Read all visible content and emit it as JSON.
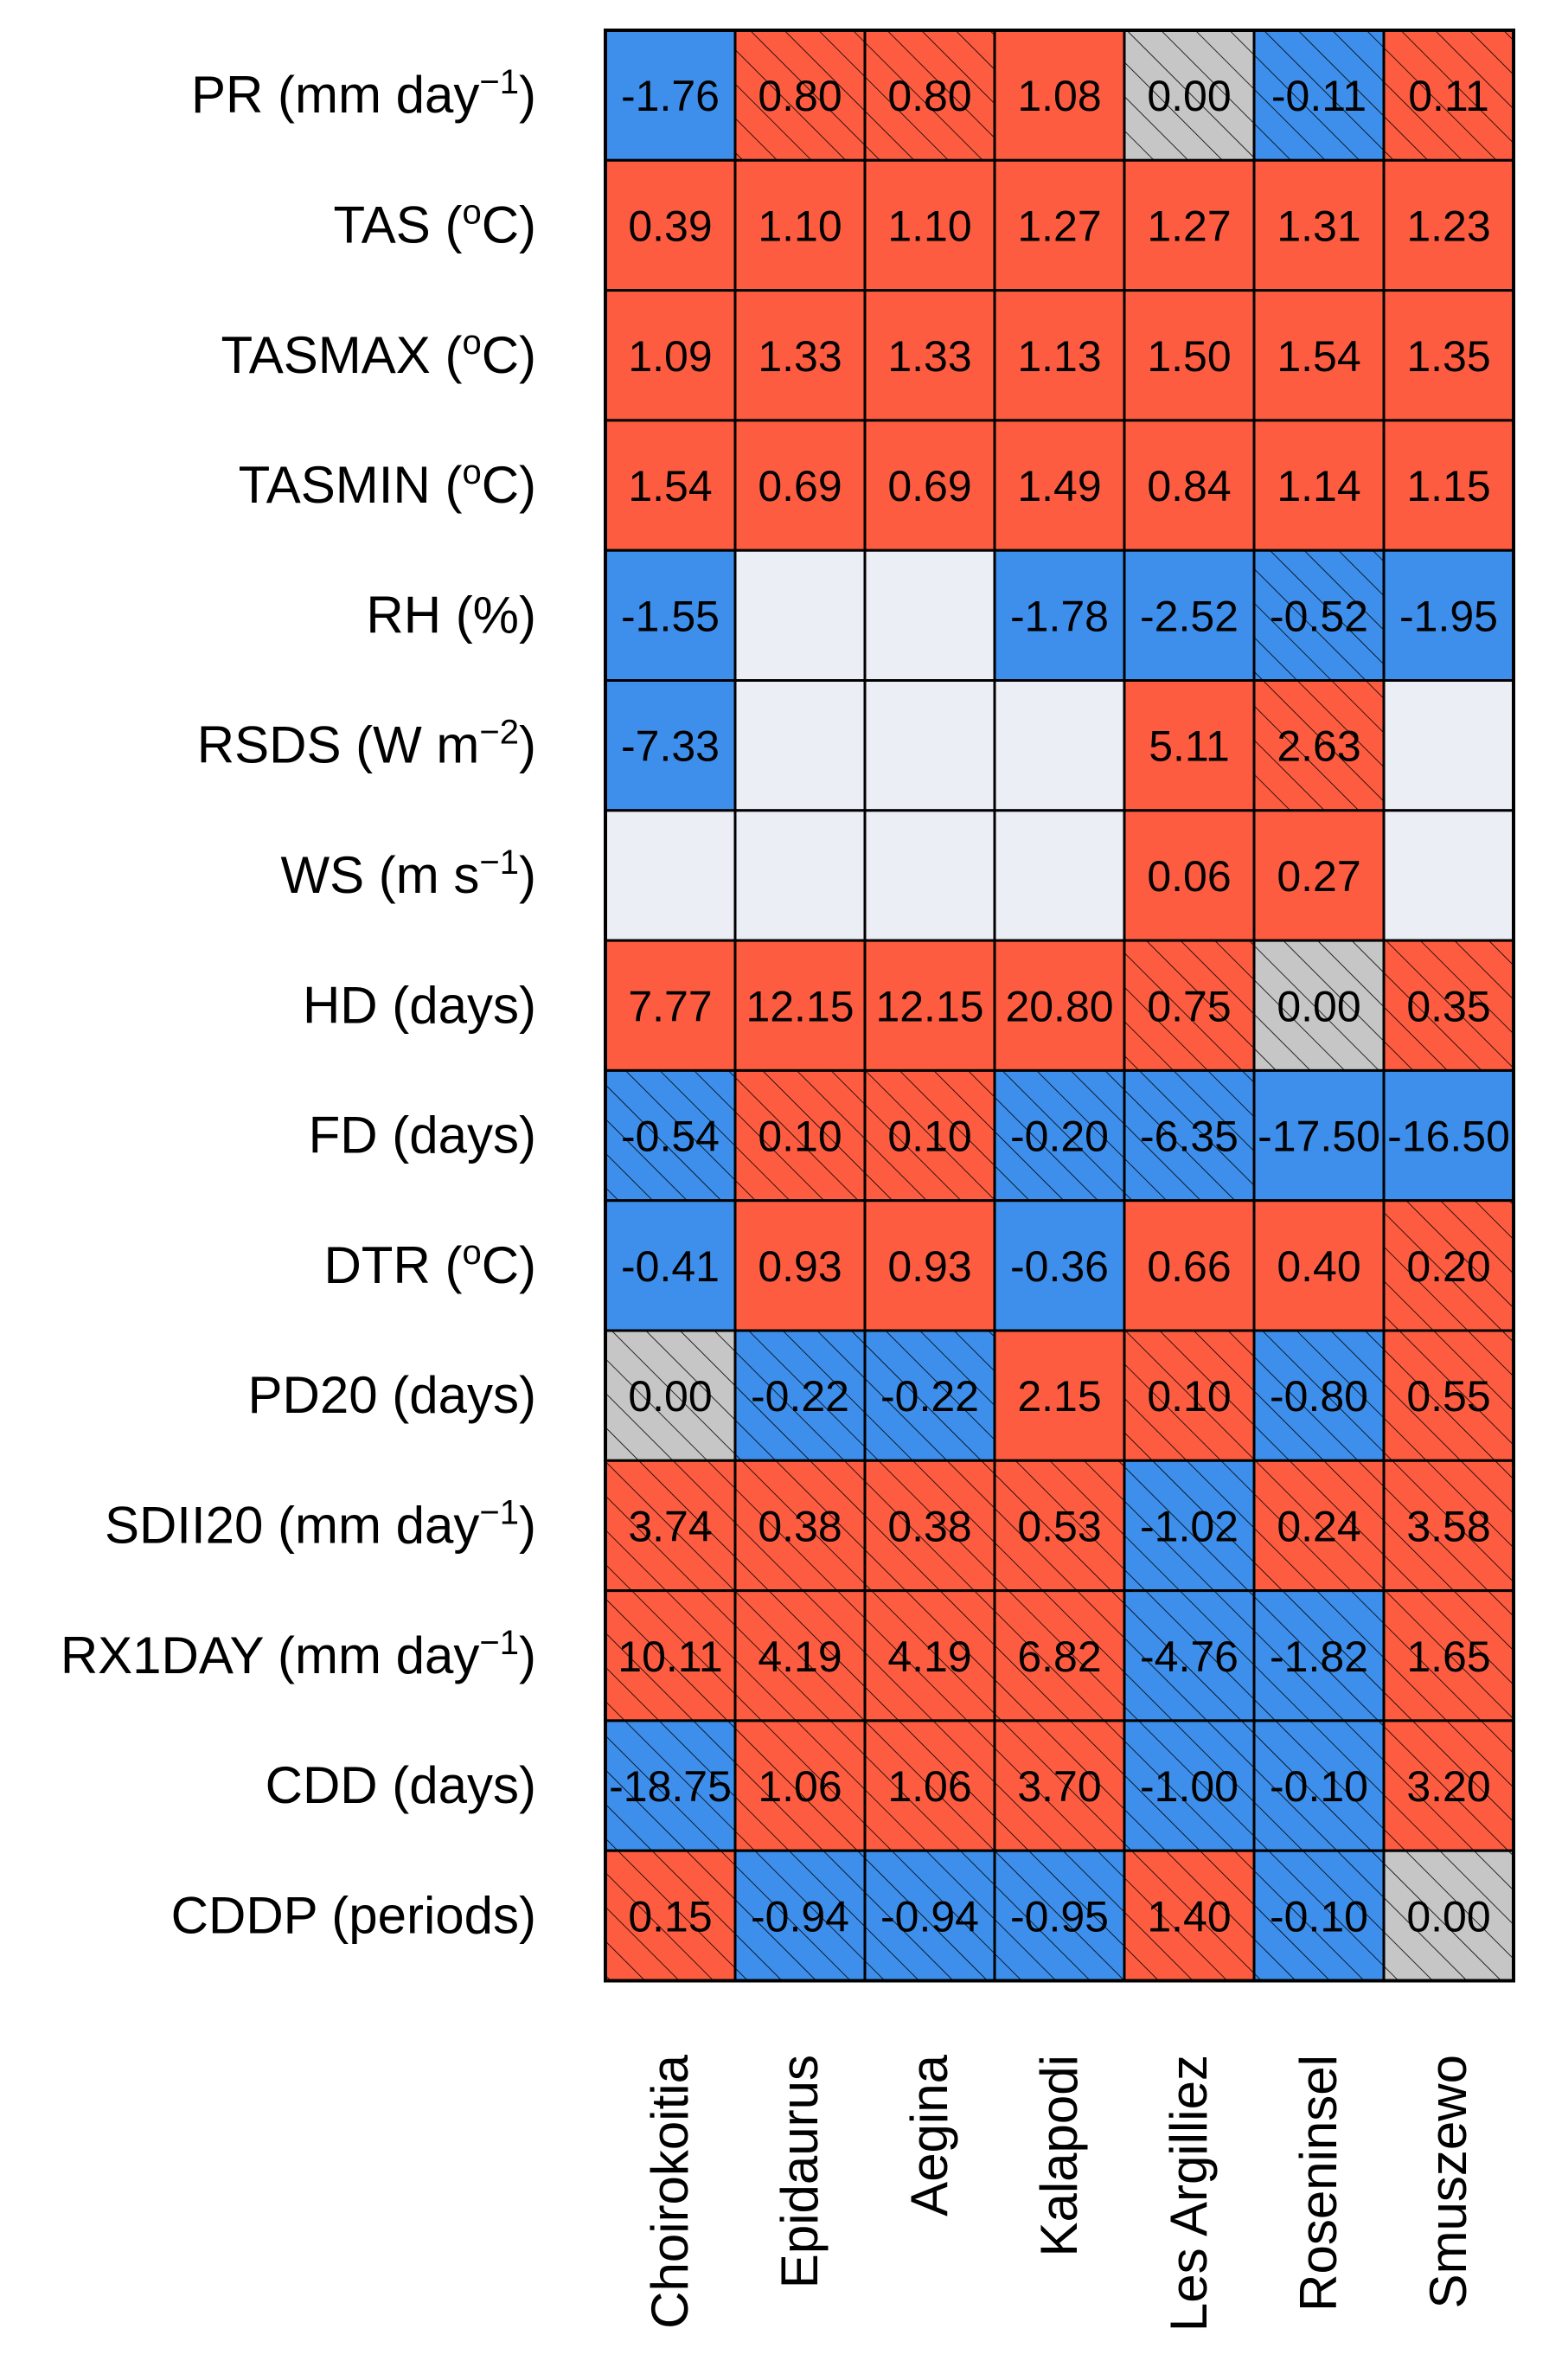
{
  "chart_data": {
    "type": "heatmap",
    "colors": {
      "positive": "#fe5c41",
      "negative": "#3d8feb",
      "zero": "#c6c6c6",
      "missing": "#eceef6",
      "grid": "#000000",
      "hatch": "#000000"
    },
    "columns": [
      "Choirokoitia",
      "Epidaurus",
      "Aegina",
      "Kalapodi",
      "Les Argilliez",
      "Roseninsel",
      "Smuszewo"
    ],
    "rows": [
      {
        "base": "PR (mm day",
        "sup": "−1",
        "tail": ")",
        "values": [
          "-1.76",
          "0.80",
          "0.80",
          "1.08",
          "0.00",
          "-0.11",
          "0.11"
        ],
        "hatched": [
          false,
          true,
          true,
          false,
          true,
          true,
          true
        ]
      },
      {
        "base": "TAS (",
        "sup": "o",
        "tail": "C)",
        "values": [
          "0.39",
          "1.10",
          "1.10",
          "1.27",
          "1.27",
          "1.31",
          "1.23"
        ],
        "hatched": [
          false,
          false,
          false,
          false,
          false,
          false,
          false
        ]
      },
      {
        "base": "TASMAX (",
        "sup": "o",
        "tail": "C)",
        "values": [
          "1.09",
          "1.33",
          "1.33",
          "1.13",
          "1.50",
          "1.54",
          "1.35"
        ],
        "hatched": [
          false,
          false,
          false,
          false,
          false,
          false,
          false
        ]
      },
      {
        "base": "TASMIN (",
        "sup": "o",
        "tail": "C)",
        "values": [
          "1.54",
          "0.69",
          "0.69",
          "1.49",
          "0.84",
          "1.14",
          "1.15"
        ],
        "hatched": [
          false,
          false,
          false,
          false,
          false,
          false,
          false
        ]
      },
      {
        "base": "RH (%)",
        "sup": "",
        "tail": "",
        "values": [
          "-1.55",
          "",
          "",
          "-1.78",
          "-2.52",
          "-0.52",
          "-1.95"
        ],
        "hatched": [
          false,
          false,
          false,
          false,
          false,
          true,
          false
        ]
      },
      {
        "base": "RSDS (W m",
        "sup": "−2",
        "tail": ")",
        "values": [
          "-7.33",
          "",
          "",
          "",
          "5.11",
          "2.63",
          ""
        ],
        "hatched": [
          false,
          false,
          false,
          false,
          false,
          true,
          false
        ]
      },
      {
        "base": "WS (m s",
        "sup": "−1",
        "tail": ")",
        "values": [
          "",
          "",
          "",
          "",
          "0.06",
          "0.27",
          ""
        ],
        "hatched": [
          false,
          false,
          false,
          false,
          false,
          false,
          false
        ]
      },
      {
        "base": "HD (days)",
        "sup": "",
        "tail": "",
        "values": [
          "7.77",
          "12.15",
          "12.15",
          "20.80",
          "0.75",
          "0.00",
          "0.35"
        ],
        "hatched": [
          false,
          false,
          false,
          false,
          true,
          true,
          true
        ]
      },
      {
        "base": "FD (days)",
        "sup": "",
        "tail": "",
        "values": [
          "-0.54",
          "0.10",
          "0.10",
          "-0.20",
          "-6.35",
          "-17.50",
          "-16.50"
        ],
        "hatched": [
          true,
          true,
          true,
          true,
          true,
          false,
          false
        ]
      },
      {
        "base": "DTR (",
        "sup": "o",
        "tail": "C)",
        "values": [
          "-0.41",
          "0.93",
          "0.93",
          "-0.36",
          "0.66",
          "0.40",
          "0.20"
        ],
        "hatched": [
          false,
          false,
          false,
          false,
          false,
          false,
          true
        ]
      },
      {
        "base": "PD20 (days)",
        "sup": "",
        "tail": "",
        "values": [
          "0.00",
          "-0.22",
          "-0.22",
          "2.15",
          "0.10",
          "-0.80",
          "0.55"
        ],
        "hatched": [
          true,
          true,
          true,
          false,
          true,
          true,
          true
        ]
      },
      {
        "base": "SDII20 (mm day",
        "sup": "−1",
        "tail": ")",
        "values": [
          "3.74",
          "0.38",
          "0.38",
          "0.53",
          "-1.02",
          "0.24",
          "3.58"
        ],
        "hatched": [
          true,
          true,
          true,
          true,
          true,
          true,
          true
        ]
      },
      {
        "base": "RX1DAY (mm day",
        "sup": "−1",
        "tail": ")",
        "values": [
          "10.11",
          "4.19",
          "4.19",
          "6.82",
          "-4.76",
          "-1.82",
          "1.65"
        ],
        "hatched": [
          true,
          true,
          true,
          true,
          true,
          true,
          true
        ]
      },
      {
        "base": "CDD (days)",
        "sup": "",
        "tail": "",
        "values": [
          "-18.75",
          "1.06",
          "1.06",
          "3.70",
          "-1.00",
          "-0.10",
          "3.20"
        ],
        "hatched": [
          true,
          true,
          true,
          true,
          true,
          true,
          true
        ]
      },
      {
        "base": "CDDP (periods)",
        "sup": "",
        "tail": "",
        "values": [
          "0.15",
          "-0.94",
          "-0.94",
          "-0.95",
          "1.40",
          "-0.10",
          "0.00"
        ],
        "hatched": [
          true,
          true,
          true,
          true,
          true,
          true,
          true
        ]
      }
    ]
  }
}
